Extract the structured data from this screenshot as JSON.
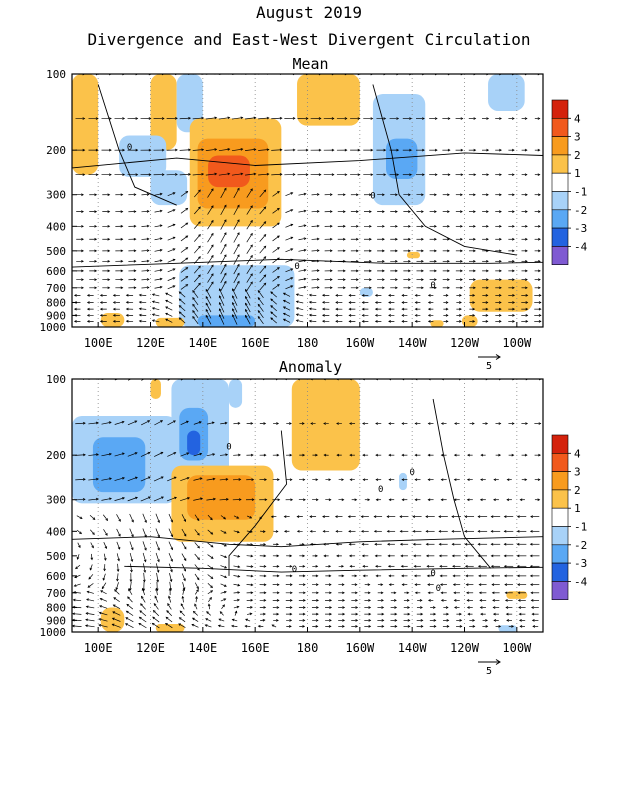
{
  "header": {
    "line1": "August 2019",
    "line2": "Divergence and East-West Divergent Circulation"
  },
  "colors": {
    "pos_1_2": "#fbc24a",
    "pos_2_3": "#f89b1e",
    "pos_3_4": "#f1591c",
    "pos_gt4": "#d4220c",
    "neg_1_2": "#a8d2f8",
    "neg_2_3": "#5aa8f4",
    "neg_3_4": "#2363e0",
    "neg_lt4": "#7f5ad2",
    "neutral": "#ffffff",
    "vectors": "#000000",
    "contours": "#000000"
  },
  "chart_data": [
    {
      "type": "heatmap",
      "title": "Mean",
      "x_ticks": [
        "100E",
        "120E",
        "140E",
        "160E",
        "180",
        "160W",
        "140W",
        "120W",
        "100W"
      ],
      "x_tick_lon": [
        100,
        120,
        140,
        160,
        180,
        200,
        220,
        240,
        260
      ],
      "xlim": [
        90,
        270
      ],
      "y_ticks": [
        "100",
        "200",
        "300",
        "400",
        "500",
        "600",
        "700",
        "800",
        "900",
        "1000"
      ],
      "y_tick_p": [
        100,
        200,
        300,
        400,
        500,
        600,
        700,
        800,
        900,
        1000
      ],
      "ylim": [
        1000,
        100
      ],
      "y_scale": "log-pressure",
      "colorbar": {
        "labels": [
          "4",
          "3",
          "2",
          "1",
          "-1",
          "-2",
          "-3",
          "-4"
        ]
      },
      "vector_ref": "5",
      "vector_ref_position": "bottom-right",
      "contour_label": "0",
      "shading": [
        {
          "lon": [
            90,
            100
          ],
          "p": [
            100,
            250
          ],
          "v": 1.5
        },
        {
          "lon": [
            120,
            130
          ],
          "p": [
            100,
            200
          ],
          "v": 1.5
        },
        {
          "lon": [
            130,
            140
          ],
          "p": [
            100,
            170
          ],
          "v": -1.5
        },
        {
          "lon": [
            108,
            126
          ],
          "p": [
            175,
            255
          ],
          "v": -1.5
        },
        {
          "lon": [
            120,
            134
          ],
          "p": [
            240,
            330
          ],
          "v": -1.5
        },
        {
          "lon": [
            135,
            170
          ],
          "p": [
            150,
            400
          ],
          "v": 1.5
        },
        {
          "lon": [
            138,
            165
          ],
          "p": [
            180,
            340
          ],
          "v": 2.5
        },
        {
          "lon": [
            142,
            158
          ],
          "p": [
            210,
            280
          ],
          "v": 3.3
        },
        {
          "lon": [
            176,
            200
          ],
          "p": [
            100,
            160
          ],
          "v": 1.5
        },
        {
          "lon": [
            205,
            225
          ],
          "p": [
            120,
            330
          ],
          "v": -1.5
        },
        {
          "lon": [
            210,
            222
          ],
          "p": [
            180,
            260
          ],
          "v": -2.5
        },
        {
          "lon": [
            249,
            263
          ],
          "p": [
            100,
            140
          ],
          "v": -1.5
        },
        {
          "lon": [
            218,
            223
          ],
          "p": [
            505,
            535
          ],
          "v": 1.5
        },
        {
          "lon": [
            200,
            205
          ],
          "p": [
            700,
            760
          ],
          "v": -1.5
        },
        {
          "lon": [
            131,
            175
          ],
          "p": [
            570,
            1000
          ],
          "v": -1.5
        },
        {
          "lon": [
            138,
            160
          ],
          "p": [
            900,
            1000
          ],
          "v": -2.5
        },
        {
          "lon": [
            160,
            168
          ],
          "p": [
            850,
            1000
          ],
          "v": -1.5
        },
        {
          "lon": [
            242,
            266
          ],
          "p": [
            650,
            870
          ],
          "v": 1.5
        },
        {
          "lon": [
            101,
            110
          ],
          "p": [
            880,
            1000
          ],
          "v": 1.5
        },
        {
          "lon": [
            122,
            133
          ],
          "p": [
            920,
            1000
          ],
          "v": 1.5
        },
        {
          "lon": [
            239,
            245
          ],
          "p": [
            900,
            1000
          ],
          "v": 1.5
        },
        {
          "lon": [
            227,
            232
          ],
          "p": [
            940,
            1000
          ],
          "v": 1.5
        }
      ]
    },
    {
      "type": "heatmap",
      "title": "Anomaly",
      "x_ticks": [
        "100E",
        "120E",
        "140E",
        "160E",
        "180",
        "160W",
        "140W",
        "120W",
        "100W"
      ],
      "x_tick_lon": [
        100,
        120,
        140,
        160,
        180,
        200,
        220,
        240,
        260
      ],
      "xlim": [
        90,
        270
      ],
      "y_ticks": [
        "100",
        "200",
        "300",
        "400",
        "500",
        "600",
        "700",
        "800",
        "900",
        "1000"
      ],
      "y_tick_p": [
        100,
        200,
        300,
        400,
        500,
        600,
        700,
        800,
        900,
        1000
      ],
      "ylim": [
        1000,
        100
      ],
      "y_scale": "log-pressure",
      "colorbar": {
        "labels": [
          "4",
          "3",
          "2",
          "1",
          "-1",
          "-2",
          "-3",
          "-4"
        ]
      },
      "vector_ref": "5",
      "vector_ref_position": "bottom-right",
      "contour_label": "0",
      "shading": [
        {
          "lon": [
            120,
            124
          ],
          "p": [
            100,
            120
          ],
          "v": 1.5
        },
        {
          "lon": [
            90,
            130
          ],
          "p": [
            140,
            310
          ],
          "v": -1.5
        },
        {
          "lon": [
            98,
            118
          ],
          "p": [
            170,
            280
          ],
          "v": -2.5
        },
        {
          "lon": [
            128,
            150
          ],
          "p": [
            100,
            240
          ],
          "v": -1.5
        },
        {
          "lon": [
            131,
            142
          ],
          "p": [
            130,
            210
          ],
          "v": -2.5
        },
        {
          "lon": [
            134,
            139
          ],
          "p": [
            160,
            200
          ],
          "v": -3.2
        },
        {
          "lon": [
            150,
            155
          ],
          "p": [
            100,
            130
          ],
          "v": -1.5
        },
        {
          "lon": [
            174,
            200
          ],
          "p": [
            100,
            230
          ],
          "v": 1.5
        },
        {
          "lon": [
            128,
            167
          ],
          "p": [
            220,
            440
          ],
          "v": 1.5
        },
        {
          "lon": [
            134,
            160
          ],
          "p": [
            240,
            360
          ],
          "v": 2.5
        },
        {
          "lon": [
            215,
            218
          ],
          "p": [
            235,
            275
          ],
          "v": -1.5
        },
        {
          "lon": [
            256,
            264
          ],
          "p": [
            690,
            740
          ],
          "v": 1.5
        },
        {
          "lon": [
            101,
            110
          ],
          "p": [
            800,
            1000
          ],
          "v": 1.5
        },
        {
          "lon": [
            122,
            133
          ],
          "p": [
            930,
            1000
          ],
          "v": 1.5
        },
        {
          "lon": [
            253,
            260
          ],
          "p": [
            940,
            1000
          ],
          "v": -1.5
        }
      ]
    }
  ]
}
